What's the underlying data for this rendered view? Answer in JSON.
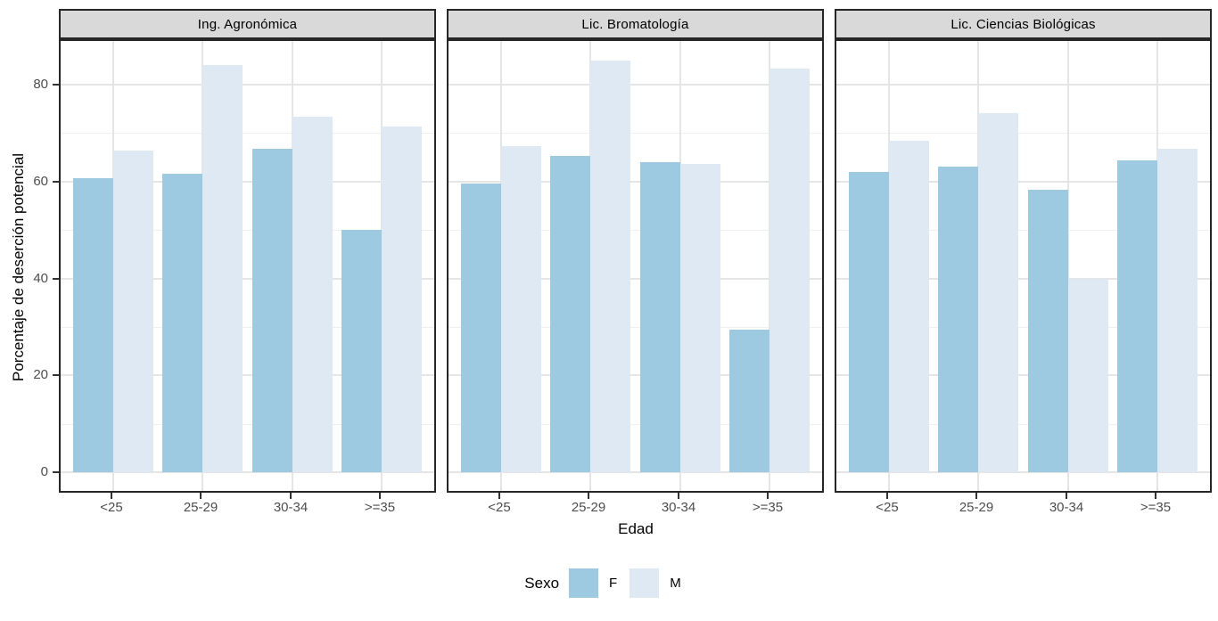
{
  "chart_data": {
    "type": "bar",
    "title": "",
    "xlabel": "Edad",
    "ylabel": "Porcentaje de deserción potencial",
    "categories": [
      "<25",
      "25-29",
      "30-34",
      ">=35"
    ],
    "yticks": [
      0,
      20,
      40,
      60,
      80
    ],
    "ylim": [
      0,
      89
    ],
    "grid": "on",
    "legend_position": "bottom",
    "legend": {
      "title": "Sexo",
      "items": [
        {
          "label": "F",
          "color": "#9DC9E1"
        },
        {
          "label": "M",
          "color": "#DEE9F4"
        }
      ]
    },
    "facets": [
      {
        "label": "Ing. Agronómica",
        "series": [
          {
            "name": "F",
            "values": [
              60.6,
              61.7,
              66.7,
              50.0
            ]
          },
          {
            "name": "M",
            "values": [
              66.3,
              84.0,
              73.4,
              71.3
            ]
          }
        ]
      },
      {
        "label": "Lic. Bromatología",
        "series": [
          {
            "name": "F",
            "values": [
              59.6,
              65.3,
              64.0,
              29.5
            ]
          },
          {
            "name": "M",
            "values": [
              67.3,
              85.0,
              63.6,
              83.3
            ]
          }
        ]
      },
      {
        "label": "Lic. Ciencias Biológicas",
        "series": [
          {
            "name": "F",
            "values": [
              62.0,
              63.0,
              58.3,
              64.3
            ]
          },
          {
            "name": "M",
            "values": [
              68.5,
              74.1,
              40.0,
              66.7
            ]
          }
        ]
      }
    ],
    "style": {
      "strip_background": "#D9D9D9",
      "panel_border": "#262626",
      "gridline_major": "#E5E5E5",
      "gridline_minor": "#F0F0F0",
      "tick_text": "#4D4D4D",
      "background": "#FFFFFF"
    }
  }
}
